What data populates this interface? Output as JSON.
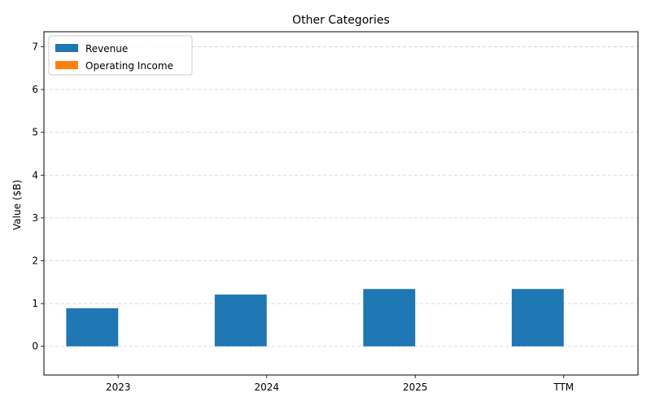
{
  "chart_data": {
    "type": "bar",
    "title": "Other Categories",
    "xlabel": "",
    "ylabel": "Value ($B)",
    "categories": [
      "2023",
      "2024",
      "2025",
      "TTM"
    ],
    "series": [
      {
        "name": "Revenue",
        "values": [
          0.89,
          1.21,
          1.34,
          1.34
        ],
        "color": "#1f77b4"
      },
      {
        "name": "Operating Income",
        "values": [
          0.0,
          0.0,
          0.0,
          0.0
        ],
        "color": "#ff7f0e"
      }
    ],
    "ylim": [
      -0.67,
      7.35
    ],
    "yticks": [
      0,
      1,
      2,
      3,
      4,
      5,
      6,
      7
    ],
    "grid": "y-dashed",
    "legend_position": "top-left"
  }
}
